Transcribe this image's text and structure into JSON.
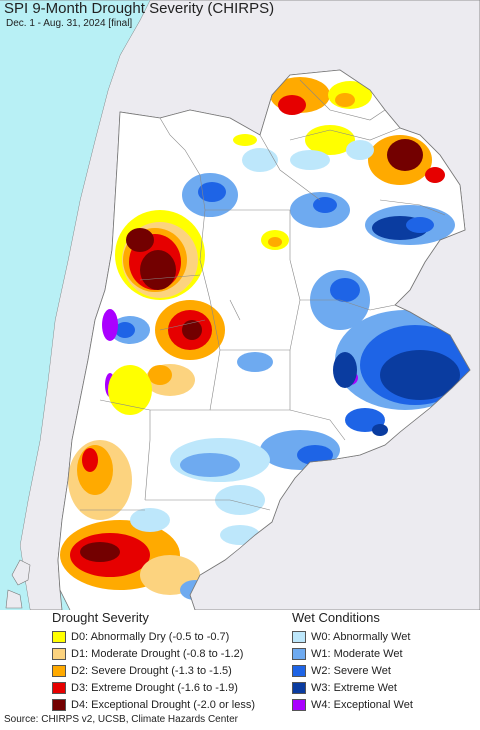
{
  "title": "SPI 9-Month Drought Severity (CHIRPS)",
  "subtitle": "Dec. 1 - Aug. 31, 2024 [final]",
  "legend": {
    "drought": {
      "title": "Drought Severity",
      "items": [
        {
          "label": "D0: Abnormally Dry (-0.5 to -0.7)",
          "color": "#ffff00"
        },
        {
          "label": "D1: Moderate Drought (-0.8 to -1.2)",
          "color": "#fcd37f"
        },
        {
          "label": "D2: Severe Drought (-1.3 to -1.5)",
          "color": "#ffaa00"
        },
        {
          "label": "D3: Extreme Drought (-1.6 to -1.9)",
          "color": "#e60000"
        },
        {
          "label": "D4: Exceptional Drought (-2.0 or less)",
          "color": "#730000"
        }
      ]
    },
    "wet": {
      "title": "Wet Conditions",
      "items": [
        {
          "label": "W0: Abnormally Wet",
          "color": "#bde7fb"
        },
        {
          "label": "W1: Moderate Wet",
          "color": "#6eaaf0"
        },
        {
          "label": "W2: Severe Wet",
          "color": "#1e64e6"
        },
        {
          "label": "W3: Extreme Wet",
          "color": "#0a3ca0"
        },
        {
          "label": "W4: Exceptional Wet",
          "color": "#aa00ff"
        }
      ]
    }
  },
  "source": "Source: CHIRPS v2, UCSB, Climate Hazards Center",
  "colors": {
    "ocean": "#b8f0f5",
    "land": "#ffffff",
    "outside": "#ecebf0",
    "border": "#777777"
  }
}
